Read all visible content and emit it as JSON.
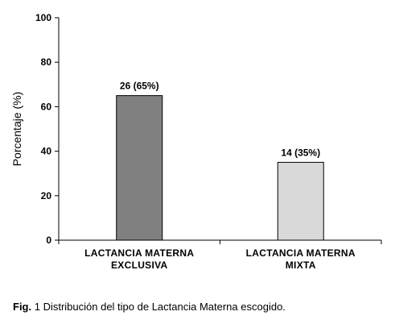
{
  "chart_data": {
    "type": "bar",
    "categories": [
      [
        "LACTANCIA MATERNA",
        "EXCLUSIVA"
      ],
      [
        "LACTANCIA MATERNA",
        "MIXTA"
      ]
    ],
    "values": [
      65,
      35
    ],
    "data_labels": [
      "26 (65%)",
      "14 (35%)"
    ],
    "bar_colors": [
      "#808080",
      "#d9d9d9"
    ],
    "title": "",
    "xlabel": "",
    "ylabel": "Porcentaje (%)",
    "ylim": [
      0,
      100
    ],
    "yticks": [
      0,
      20,
      40,
      60,
      80,
      100
    ],
    "grid": false,
    "legend": "none"
  },
  "caption": {
    "prefix": "Fig.",
    "text": " 1 Distribución del tipo de Lactancia Materna escogido."
  }
}
